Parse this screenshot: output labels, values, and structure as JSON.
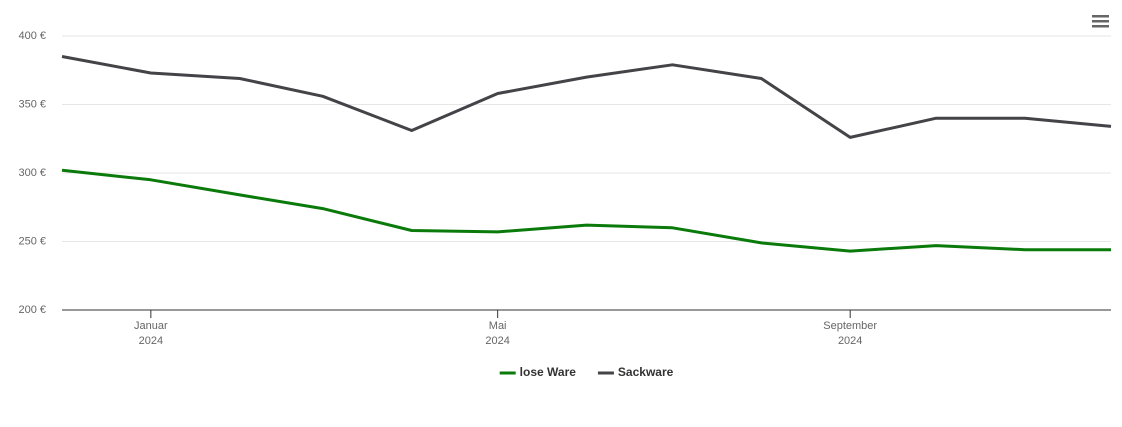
{
  "chart_data": {
    "type": "line",
    "x": [
      "2023-12",
      "2024-01",
      "2024-02",
      "2024-03",
      "2024-04",
      "2024-05",
      "2024-06",
      "2024-07",
      "2024-08",
      "2024-09",
      "2024-10",
      "2024-11",
      "2024-12"
    ],
    "series": [
      {
        "name": "lose Ware",
        "color": "#0a7a0a",
        "values": [
          302,
          295,
          284,
          274,
          258,
          257,
          262,
          260,
          249,
          243,
          247,
          244,
          244
        ]
      },
      {
        "name": "Sackware",
        "color": "#434348",
        "values": [
          385,
          373,
          369,
          356,
          331,
          358,
          370,
          379,
          369,
          326,
          340,
          340,
          334
        ]
      }
    ],
    "xlim": [
      "2023-12",
      "2024-12"
    ],
    "xticks": [
      {
        "value": "2024-01",
        "label": "Januar 2024"
      },
      {
        "value": "2024-05",
        "label": "Mai 2024"
      },
      {
        "value": "2024-09",
        "label": "September 2024"
      }
    ],
    "ylim": [
      200,
      400
    ],
    "yticks": [
      {
        "value": 200,
        "label": "200 €"
      },
      {
        "value": 250,
        "label": "250 €"
      },
      {
        "value": 300,
        "label": "300 €"
      },
      {
        "value": 350,
        "label": "350 €"
      },
      {
        "value": 400,
        "label": "400 €"
      }
    ],
    "grid": true,
    "legend": "bottom"
  }
}
